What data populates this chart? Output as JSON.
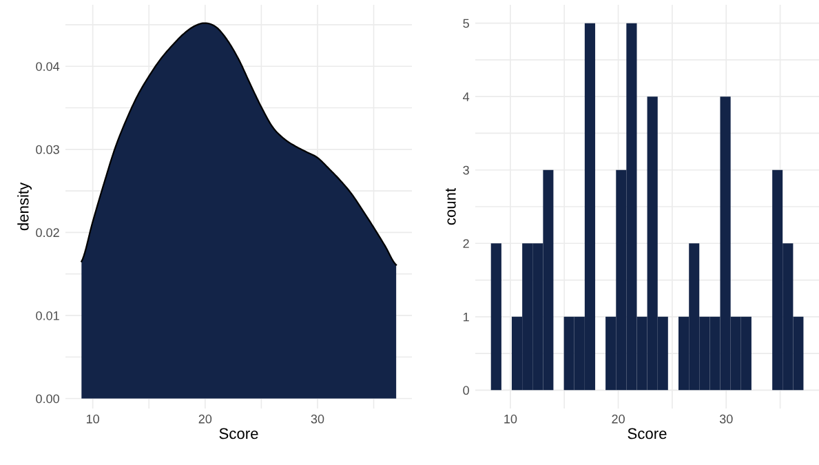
{
  "chart_data": [
    {
      "type": "area",
      "xlabel": "Score",
      "ylabel": "density",
      "grid": true,
      "legend": false,
      "x": [
        9,
        10,
        11,
        12,
        13,
        14,
        15,
        16,
        17,
        18,
        19,
        20,
        21,
        22,
        23,
        24,
        25,
        26,
        27,
        28,
        29,
        30,
        31,
        32,
        33,
        34,
        35,
        36,
        37
      ],
      "series": [
        {
          "color": "#132448",
          "values": [
            0.0165,
            0.0213,
            0.0259,
            0.0302,
            0.0336,
            0.0365,
            0.0388,
            0.0408,
            0.0424,
            0.0438,
            0.0448,
            0.0452,
            0.0447,
            0.0431,
            0.0408,
            0.0379,
            0.0351,
            0.0327,
            0.0313,
            0.0304,
            0.0297,
            0.029,
            0.0277,
            0.0263,
            0.0247,
            0.0227,
            0.0206,
            0.0184,
            0.0161
          ]
        }
      ],
      "xlim": [
        7.57,
        38.4
      ],
      "xticks": [
        10,
        {
          "value": 15,
          "label": null
        },
        20,
        {
          "value": 25,
          "label": null
        },
        30,
        {
          "value": 35,
          "label": null
        }
      ],
      "ylim": [
        -0.0012,
        0.0474
      ],
      "yticks": [
        {
          "value": 0,
          "label": "0.00"
        },
        {
          "value": 0.005,
          "label": null
        },
        {
          "value": 0.01,
          "label": "0.01"
        },
        {
          "value": 0.015,
          "label": null
        },
        {
          "value": 0.02,
          "label": "0.02"
        },
        {
          "value": 0.025,
          "label": null
        },
        {
          "value": 0.03,
          "label": "0.03"
        },
        {
          "value": 0.035,
          "label": null
        },
        {
          "value": 0.04,
          "label": "0.04"
        },
        {
          "value": 0.045,
          "label": null
        }
      ]
    },
    {
      "type": "histogram",
      "xlabel": "Score",
      "ylabel": "count",
      "grid": true,
      "legend": false,
      "color": "#132448",
      "bins": [
        8.2,
        9.17,
        10.13,
        11.1,
        12.06,
        13.03,
        13.99,
        14.96,
        15.92,
        16.89,
        17.86,
        18.82,
        19.79,
        20.75,
        21.72,
        22.68,
        23.65,
        24.61,
        25.58,
        26.55,
        27.51,
        28.48,
        29.44,
        30.41,
        31.37,
        32.34,
        33.3,
        34.27,
        35.23,
        36.2,
        37.16
      ],
      "values": [
        2,
        0,
        1,
        2,
        2,
        3,
        0,
        1,
        1,
        5,
        0,
        1,
        3,
        5,
        1,
        4,
        1,
        0,
        1,
        2,
        1,
        1,
        4,
        1,
        1,
        0,
        0,
        3,
        2,
        1
      ],
      "xlim": [
        6.75,
        38.6
      ],
      "xticks": [
        10,
        {
          "value": 15,
          "label": null
        },
        20,
        {
          "value": 25,
          "label": null
        },
        30,
        {
          "value": 35,
          "label": null
        }
      ],
      "ylim": [
        -0.25,
        5.25
      ],
      "yticks": [
        0,
        {
          "value": 0.5,
          "label": null
        },
        1,
        {
          "value": 1.5,
          "label": null
        },
        2,
        {
          "value": 2.5,
          "label": null
        },
        3,
        {
          "value": 3.5,
          "label": null
        },
        4,
        {
          "value": 4.5,
          "label": null
        },
        5
      ]
    }
  ]
}
